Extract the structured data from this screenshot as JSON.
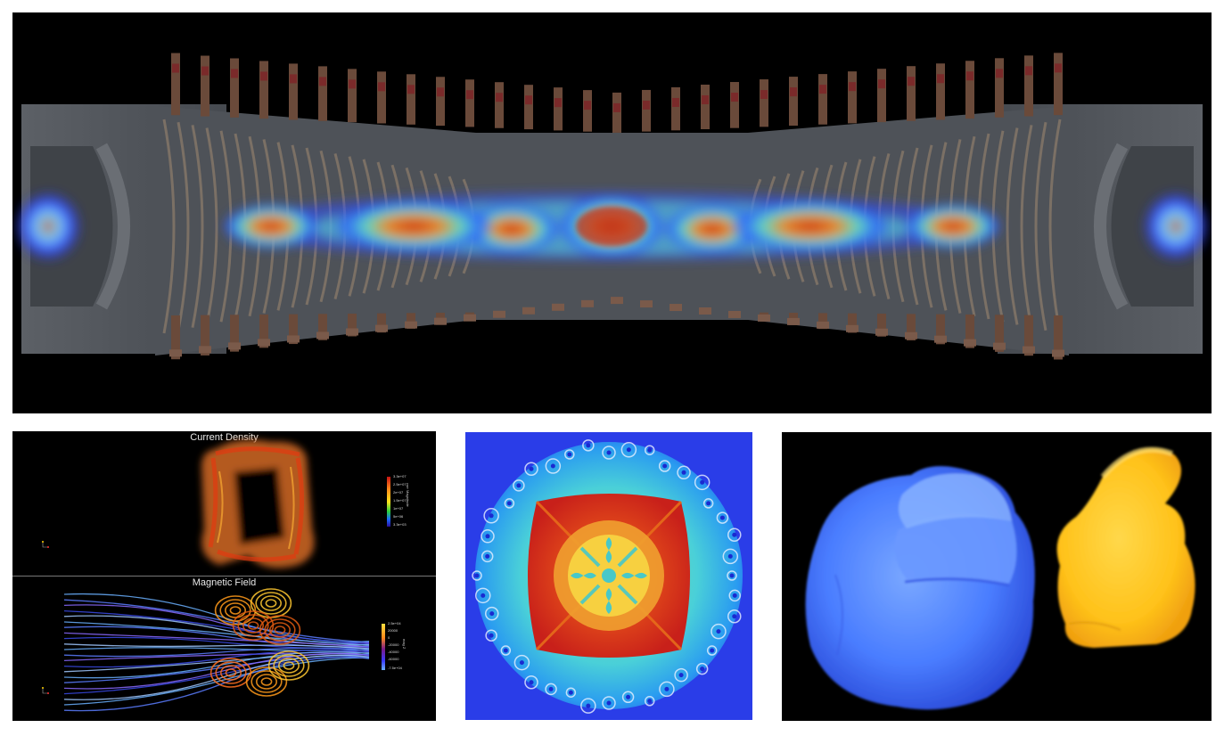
{
  "panels": {
    "top": {
      "name": "plasma-volume-render"
    },
    "em": {
      "current_density": {
        "title": "Current Density",
        "colorbar_title": "curr Magnitude",
        "ticks": [
          "3.3e+07",
          "2.5e+07",
          "2e+07",
          "1.5e+07",
          "1e+07",
          "5e+06",
          "3.3e+03"
        ]
      },
      "magnetic_field": {
        "title": "Magnetic Field",
        "colorbar_title": "mag Z",
        "ticks": [
          "2.5e+04",
          "20000",
          "0",
          "-20000",
          "-40000",
          "-60000",
          "-7.5e+04"
        ]
      }
    },
    "fractal": {
      "name": "fractal-instability-render"
    },
    "bunny": {
      "name": "bunny-point-cloud-render"
    }
  },
  "colors": {
    "background": "#ffffff",
    "plasma_hot": "#d83a12",
    "plasma_cool": "#2f3cff",
    "bunny_blue": "#4a7dff",
    "bunny_yellow": "#ffc21a"
  }
}
